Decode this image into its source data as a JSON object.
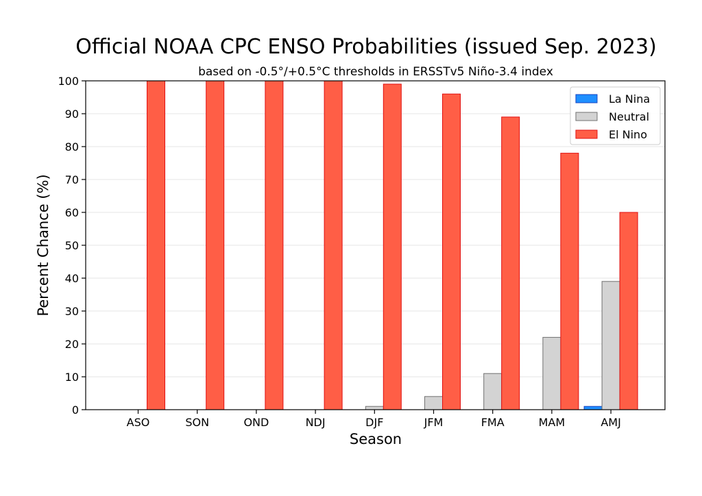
{
  "chart_data": {
    "type": "bar",
    "title": "Official NOAA CPC ENSO Probabilities (issued Sep. 2023)",
    "subtitle": "based on -0.5°/+0.5°C thresholds in ERSSTv5 Niño-3.4 index",
    "xlabel": "Season",
    "ylabel": "Percent Chance (%)",
    "ylim": [
      0,
      100
    ],
    "yticks": [
      0,
      10,
      20,
      30,
      40,
      50,
      60,
      70,
      80,
      90,
      100
    ],
    "grid": "horizontal",
    "legend_position": "top-right",
    "categories": [
      "ASO",
      "SON",
      "OND",
      "NDJ",
      "DJF",
      "JFM",
      "FMA",
      "MAM",
      "AMJ"
    ],
    "series": [
      {
        "name": "La Nina",
        "color": "#1f8fff",
        "edge": "#1540c0",
        "values": [
          0,
          0,
          0,
          0,
          0,
          0,
          0,
          0,
          1
        ]
      },
      {
        "name": "Neutral",
        "color": "#d3d3d3",
        "edge": "#707070",
        "values": [
          0,
          0,
          0,
          0,
          1,
          4,
          11,
          22,
          39
        ]
      },
      {
        "name": "El Nino",
        "color": "#ff5e46",
        "edge": "#e01010",
        "values": [
          100,
          100,
          100,
          100,
          99,
          96,
          89,
          78,
          60
        ]
      }
    ]
  }
}
